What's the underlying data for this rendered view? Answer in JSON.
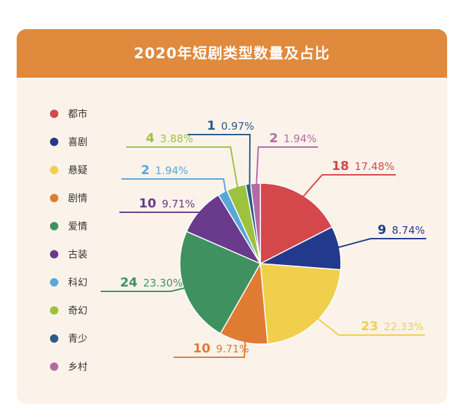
{
  "chart_data": {
    "type": "pie",
    "title": "2020年短剧类型数量及占比",
    "categories": [
      "都市",
      "喜剧",
      "悬疑",
      "剧情",
      "爱情",
      "古装",
      "科幻",
      "奇幻",
      "青少",
      "乡村"
    ],
    "values": [
      18,
      9,
      23,
      10,
      24,
      10,
      2,
      4,
      1,
      2
    ],
    "percent_labels": [
      "17.48%",
      "8.74%",
      "22.33%",
      "9.71%",
      "23.30%",
      "9.71%",
      "1.94%",
      "3.88%",
      "0.97%",
      "1.94%"
    ],
    "colors": [
      "#d4474b",
      "#233a8c",
      "#f0cf4c",
      "#e07b34",
      "#3f925f",
      "#6a3a8c",
      "#5aa6d8",
      "#9cc23f",
      "#2a5a8a",
      "#b56aa8"
    ],
    "legend_position": "left"
  }
}
